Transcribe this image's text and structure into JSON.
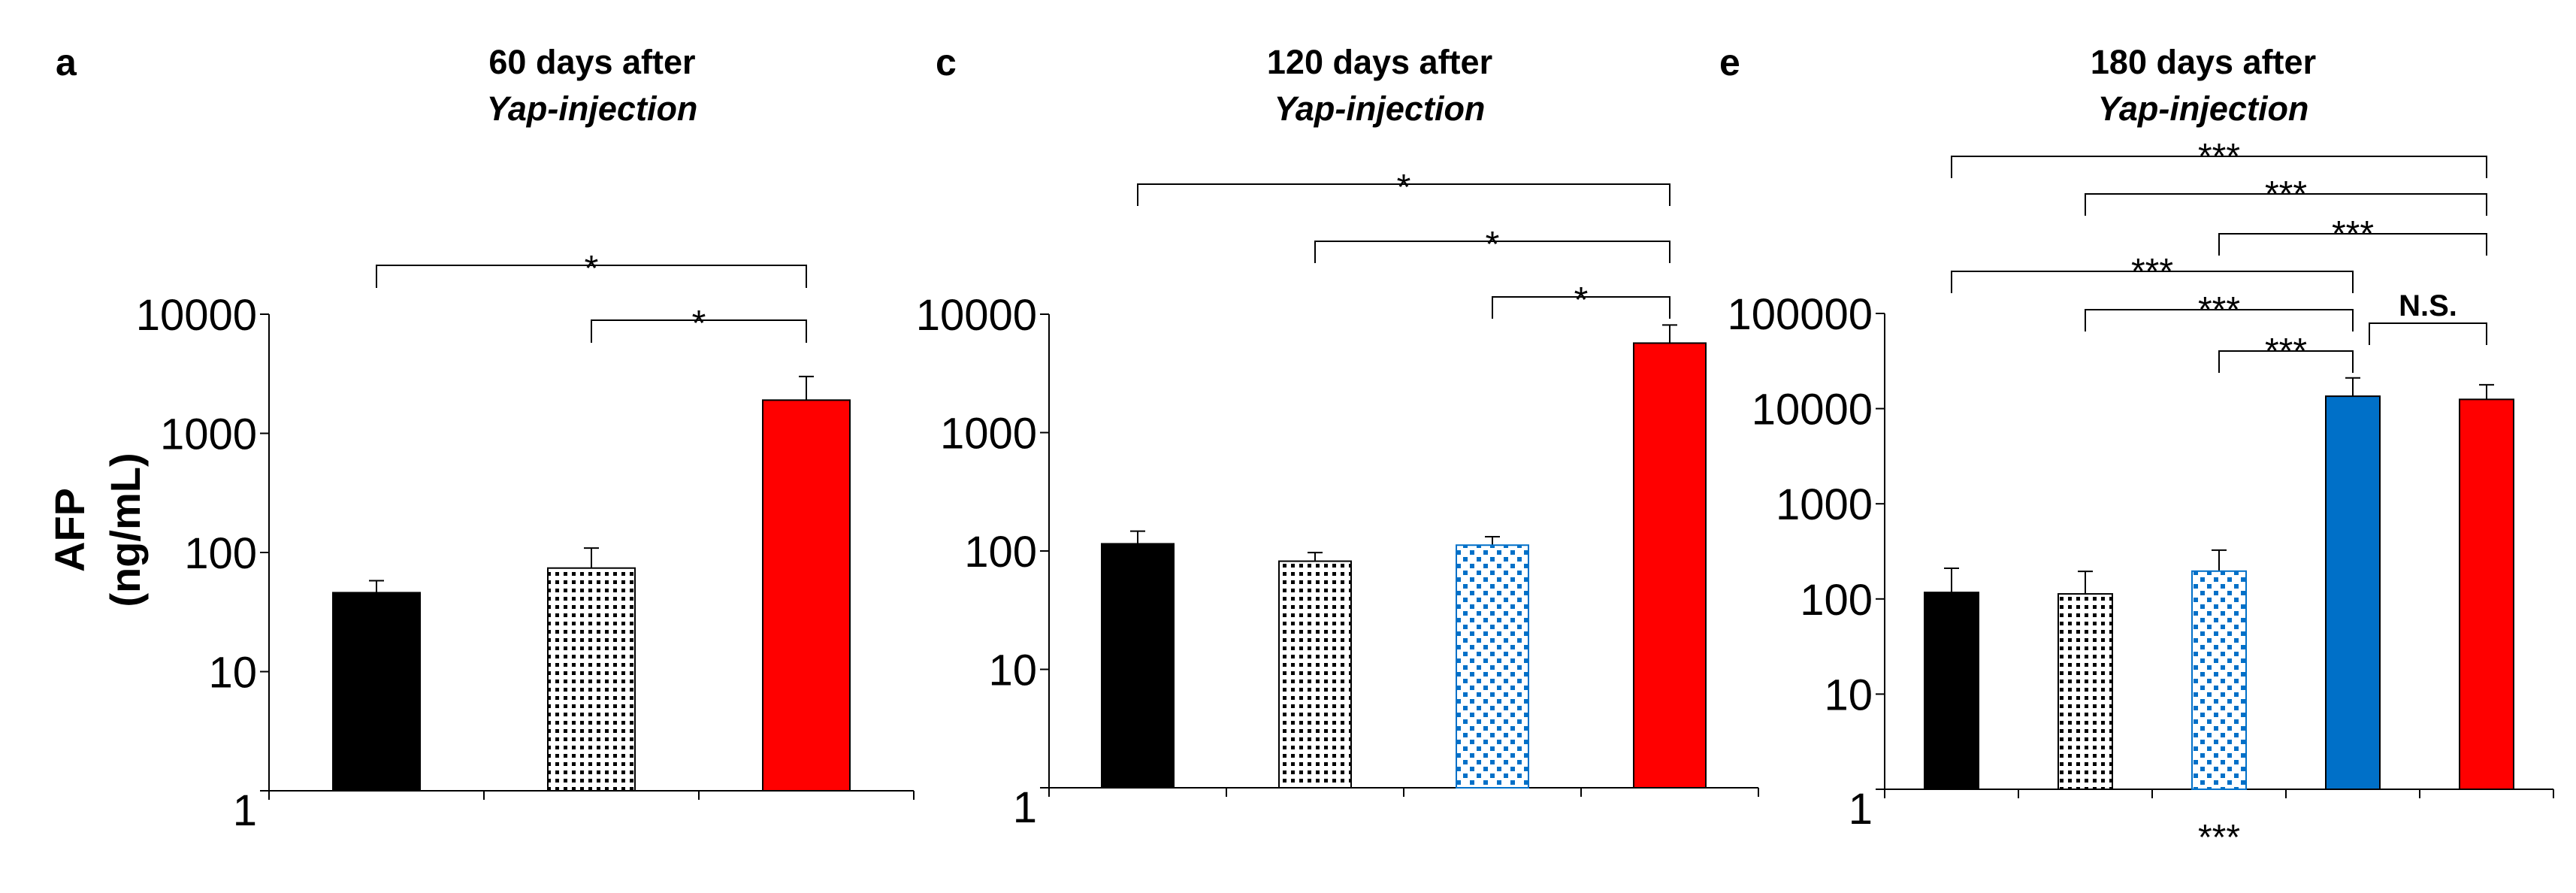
{
  "figure": {
    "y_label_line1": "AFP",
    "y_label_line2": "(ng/mL)"
  },
  "chart_data": [
    {
      "panel": "a",
      "type": "bar",
      "title_line1": "60 days after",
      "title_line2": "Yap-injection",
      "yscale": "log",
      "ylim": [
        1,
        10000
      ],
      "yticks": [
        "1",
        "10",
        "100",
        "1000",
        "10000"
      ],
      "ylabel": "AFP (ng/mL)",
      "bars": [
        {
          "value": 46,
          "error": 12,
          "fill": "#000000",
          "pattern": "solid"
        },
        {
          "value": 74,
          "error": 35,
          "fill": "#000000",
          "pattern": "black-dots"
        },
        {
          "value": 1900,
          "error": 1100,
          "fill": "#ff0000",
          "pattern": "solid"
        }
      ],
      "significance": [
        {
          "from": 0,
          "to": 2,
          "label": "*"
        },
        {
          "from": 1,
          "to": 2,
          "label": "*"
        }
      ],
      "bottom_label": ""
    },
    {
      "panel": "c",
      "type": "bar",
      "title_line1": "120 days after",
      "title_line2": "Yap-injection",
      "yscale": "log",
      "ylim": [
        1,
        10000
      ],
      "yticks": [
        "1",
        "10",
        "100",
        "1000",
        "10000"
      ],
      "ylabel": "",
      "bars": [
        {
          "value": 115,
          "error": 32,
          "fill": "#000000",
          "pattern": "solid"
        },
        {
          "value": 82,
          "error": 15,
          "fill": "#000000",
          "pattern": "black-dots"
        },
        {
          "value": 112,
          "error": 20,
          "fill": "#0070c8",
          "pattern": "blue-dots"
        },
        {
          "value": 5700,
          "error": 2400,
          "fill": "#ff0000",
          "pattern": "solid"
        }
      ],
      "significance": [
        {
          "from": 0,
          "to": 3,
          "label": "*"
        },
        {
          "from": 1,
          "to": 3,
          "label": "*"
        },
        {
          "from": 2,
          "to": 3,
          "label": "*"
        }
      ],
      "bottom_label": ""
    },
    {
      "panel": "e",
      "type": "bar",
      "title_line1": "180 days after",
      "title_line2": "Yap-injection",
      "yscale": "log",
      "ylim": [
        1,
        100000
      ],
      "yticks": [
        "1",
        "10",
        "100",
        "1000",
        "10000",
        "100000"
      ],
      "ylabel": "",
      "bars": [
        {
          "value": 117,
          "error": 93,
          "fill": "#000000",
          "pattern": "solid"
        },
        {
          "value": 113,
          "error": 82,
          "fill": "#000000",
          "pattern": "black-dots"
        },
        {
          "value": 196,
          "error": 130,
          "fill": "#0070c8",
          "pattern": "blue-dots"
        },
        {
          "value": 13500,
          "error": 7500,
          "fill": "#0070c8",
          "pattern": "solid"
        },
        {
          "value": 12500,
          "error": 5300,
          "fill": "#ff0000",
          "pattern": "solid"
        }
      ],
      "significance": [
        {
          "from": 0,
          "to": 4,
          "label": "***"
        },
        {
          "from": 1,
          "to": 4,
          "label": "***"
        },
        {
          "from": 2,
          "to": 4,
          "label": "***"
        },
        {
          "from": 0,
          "to": 3,
          "label": "***"
        },
        {
          "from": 1,
          "to": 3,
          "label": "***"
        },
        {
          "from": 2,
          "to": 3,
          "label": "***"
        },
        {
          "from": 3,
          "to": 4,
          "label": "N.S."
        }
      ],
      "bottom_label": "***"
    }
  ]
}
